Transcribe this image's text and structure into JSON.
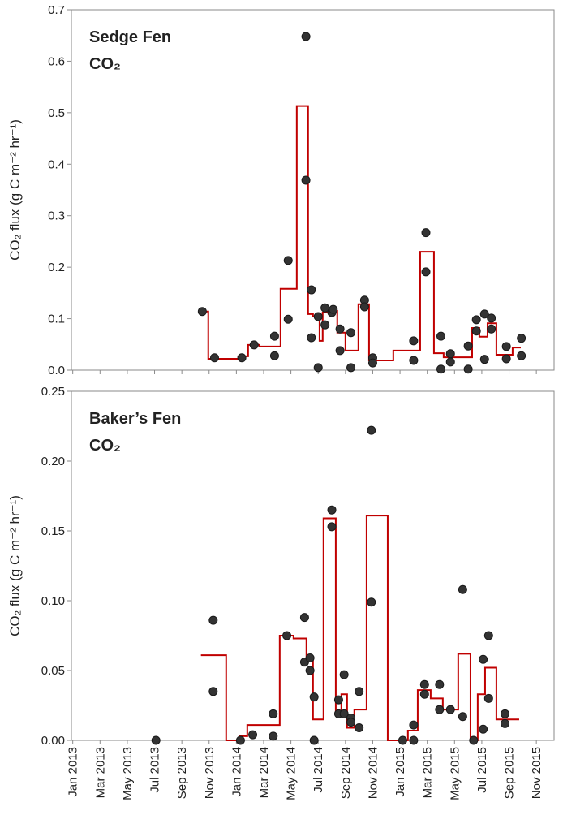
{
  "chart_data": [
    {
      "type": "scatter",
      "title": "Sedge Fen",
      "subtitle": "CO₂",
      "y_label": "CO₂ flux (g C m⁻² hr⁻¹)",
      "xlim": [
        -0.1,
        35.3
      ],
      "xticks": [
        0,
        2,
        4,
        6,
        8,
        10,
        12,
        14,
        16,
        18,
        20,
        22,
        24,
        26,
        28,
        30,
        32,
        34
      ],
      "ylim": [
        0,
        0.7
      ],
      "yticks": [
        {
          "value": 0,
          "label": "0.0"
        },
        0.1,
        0.2,
        0.3,
        0.4,
        0.5,
        0.6,
        0.7
      ],
      "series": [
        {
          "type": "line",
          "color": "#c00000",
          "x": [
            9.46,
            9.94,
            9.94,
            12.14,
            12.14,
            12.86,
            12.86,
            13.69,
            13.69,
            15.24,
            15.24,
            16.43,
            16.43,
            17.26,
            17.26,
            17.62,
            17.62,
            18.1,
            18.1,
            18.33,
            18.33,
            18.93,
            18.93,
            19.4,
            19.4,
            20.0,
            20.0,
            20.95,
            20.95,
            21.73,
            21.73,
            23.51,
            23.51,
            25.48,
            25.48,
            26.49,
            26.49,
            27.2,
            27.2,
            29.29,
            29.29,
            29.82,
            29.82,
            30.42,
            30.42,
            31.07,
            31.07,
            32.26,
            32.26,
            32.86
          ],
          "values": [
            0.114,
            0.114,
            0.022,
            0.022,
            0.027,
            0.027,
            0.049,
            0.049,
            0.046,
            0.046,
            0.158,
            0.158,
            0.513,
            0.513,
            0.109,
            0.109,
            0.104,
            0.104,
            0.057,
            0.057,
            0.112,
            0.112,
            0.115,
            0.115,
            0.073,
            0.073,
            0.038,
            0.038,
            0.128,
            0.128,
            0.019,
            0.019,
            0.038,
            0.038,
            0.23,
            0.23,
            0.033,
            0.033,
            0.025,
            0.025,
            0.082,
            0.082,
            0.065,
            0.065,
            0.091,
            0.091,
            0.03,
            0.03,
            0.044,
            0.044
          ]
        },
        {
          "type": "scatter",
          "color": "#333333",
          "x": [
            9.5,
            10.4,
            12.4,
            13.3,
            14.8,
            14.8,
            15.8,
            15.8,
            17.1,
            17.1,
            17.5,
            17.5,
            18.0,
            18.0,
            18.5,
            18.5,
            19.0,
            19.1,
            19.6,
            19.6,
            20.4,
            20.4,
            21.4,
            21.4,
            22.0,
            22.0,
            25.0,
            25.0,
            25.9,
            25.9,
            27.0,
            27.0,
            27.7,
            27.7,
            29.0,
            29.0,
            29.6,
            29.6,
            30.2,
            30.2,
            30.7,
            30.7,
            31.8,
            31.8,
            32.9,
            32.9
          ],
          "values": [
            0.114,
            0.024,
            0.024,
            0.049,
            0.028,
            0.066,
            0.099,
            0.213,
            0.648,
            0.369,
            0.156,
            0.063,
            0.104,
            0.005,
            0.121,
            0.088,
            0.112,
            0.118,
            0.08,
            0.038,
            0.073,
            0.005,
            0.136,
            0.123,
            0.024,
            0.014,
            0.057,
            0.019,
            0.267,
            0.191,
            0.066,
            0.002,
            0.032,
            0.016,
            0.047,
            0.002,
            0.098,
            0.076,
            0.109,
            0.021,
            0.101,
            0.08,
            0.046,
            0.022,
            0.062,
            0.028
          ]
        }
      ]
    },
    {
      "type": "scatter",
      "title": "Baker’s Fen",
      "subtitle": "CO₂",
      "y_label": "CO₂ flux (g C m⁻² hr⁻¹)",
      "xlim": [
        -0.1,
        35.3
      ],
      "xticks": [
        {
          "value": 0,
          "label": "Jan 2013"
        },
        {
          "value": 2,
          "label": "Mar 2013"
        },
        {
          "value": 4,
          "label": "May 2013"
        },
        {
          "value": 6,
          "label": "Jul 2013"
        },
        {
          "value": 8,
          "label": "Sep 2013"
        },
        {
          "value": 10,
          "label": "Nov 2013"
        },
        {
          "value": 12,
          "label": "Jan 2014"
        },
        {
          "value": 14,
          "label": "Mar 2014"
        },
        {
          "value": 16,
          "label": "May 2014"
        },
        {
          "value": 18,
          "label": "Jul 2014"
        },
        {
          "value": 20,
          "label": "Sep 2014"
        },
        {
          "value": 22,
          "label": "Nov 2014"
        },
        {
          "value": 24,
          "label": "Jan 2015"
        },
        {
          "value": 26,
          "label": "Mar 2015"
        },
        {
          "value": 28,
          "label": "May 2015"
        },
        {
          "value": 30,
          "label": "Jul 2015"
        },
        {
          "value": 32,
          "label": "Sep 2015"
        },
        {
          "value": 34,
          "label": "Nov 2015"
        }
      ],
      "ylim": [
        0,
        0.25
      ],
      "yticks": [
        {
          "value": 0,
          "label": "0.00"
        },
        {
          "value": 0.05,
          "label": "0.05"
        },
        {
          "value": 0.1,
          "label": "0.10"
        },
        {
          "value": 0.15,
          "label": "0.15"
        },
        {
          "value": 0.2,
          "label": "0.20"
        },
        {
          "value": 0.25,
          "label": "0.25"
        }
      ],
      "series": [
        {
          "type": "line",
          "color": "#c00000",
          "x": [
            9.4,
            11.25,
            11.25,
            12.26,
            12.26,
            12.8,
            12.8,
            15.18,
            15.18,
            16.19,
            16.19,
            17.14,
            17.14,
            17.62,
            17.62,
            18.39,
            18.39,
            19.29,
            19.29,
            19.7,
            19.7,
            20.12,
            20.12,
            20.65,
            20.65,
            21.55,
            21.55,
            23.1,
            23.1,
            24.58,
            24.58,
            25.3,
            25.3,
            26.25,
            26.25,
            27.14,
            27.14,
            28.27,
            28.27,
            29.17,
            29.17,
            29.7,
            29.7,
            30.24,
            30.24,
            31.07,
            31.07,
            32.74
          ],
          "values": [
            0.061,
            0.061,
            0.0,
            0.0,
            0.003,
            0.003,
            0.011,
            0.011,
            0.075,
            0.075,
            0.073,
            0.073,
            0.057,
            0.057,
            0.015,
            0.015,
            0.159,
            0.159,
            0.02,
            0.02,
            0.033,
            0.033,
            0.009,
            0.009,
            0.022,
            0.022,
            0.161,
            0.161,
            0.0,
            0.0,
            0.007,
            0.007,
            0.036,
            0.036,
            0.03,
            0.03,
            0.022,
            0.022,
            0.062,
            0.062,
            0.0,
            0.0,
            0.033,
            0.033,
            0.052,
            0.052,
            0.015,
            0.015
          ]
        },
        {
          "type": "scatter",
          "color": "#333333",
          "x": [
            10.3,
            10.3,
            6.1,
            12.3,
            13.2,
            14.7,
            14.7,
            15.7,
            17.0,
            17.0,
            17.4,
            17.4,
            17.7,
            17.7,
            19.0,
            19.0,
            19.5,
            19.5,
            19.9,
            19.9,
            20.4,
            20.4,
            21.0,
            21.0,
            21.9,
            21.9,
            24.2,
            25.0,
            25.0,
            25.8,
            25.8,
            26.9,
            26.9,
            27.7,
            28.6,
            28.6,
            29.4,
            30.1,
            30.1,
            30.5,
            30.5,
            31.7,
            31.7
          ],
          "values": [
            0.086,
            0.035,
            0.0,
            0.0,
            0.004,
            0.019,
            0.003,
            0.075,
            0.088,
            0.056,
            0.059,
            0.05,
            0.031,
            0.0,
            0.165,
            0.153,
            0.029,
            0.019,
            0.047,
            0.019,
            0.016,
            0.013,
            0.035,
            0.009,
            0.222,
            0.099,
            0.0,
            0.011,
            0.0,
            0.04,
            0.033,
            0.04,
            0.022,
            0.022,
            0.108,
            0.017,
            0.0,
            0.058,
            0.008,
            0.075,
            0.03,
            0.019,
            0.012
          ]
        }
      ]
    }
  ]
}
